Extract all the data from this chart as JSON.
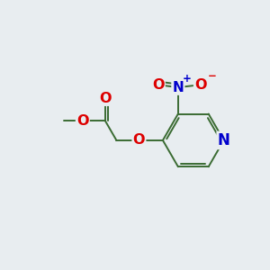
{
  "background_color": "#e8edf0",
  "bond_color": "#3a6b32",
  "bond_width": 1.4,
  "atom_colors": {
    "O": "#dd0000",
    "N_ring": "#0000cc",
    "N_no2": "#0000cc",
    "C": "#3a6b32"
  },
  "font_size": 10.5,
  "figsize": [
    3.0,
    3.0
  ],
  "dpi": 100,
  "xlim": [
    0,
    10
  ],
  "ylim": [
    0,
    10
  ]
}
